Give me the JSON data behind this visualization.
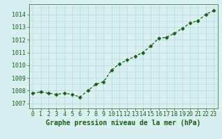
{
  "x": [
    0,
    1,
    2,
    3,
    4,
    5,
    6,
    7,
    8,
    9,
    10,
    11,
    12,
    13,
    14,
    15,
    16,
    17,
    18,
    19,
    20,
    21,
    22,
    23
  ],
  "y": [
    1007.8,
    1007.9,
    1007.8,
    1007.7,
    1007.8,
    1007.7,
    1007.5,
    1008.0,
    1008.5,
    1008.7,
    1009.6,
    1010.1,
    1010.4,
    1010.7,
    1011.0,
    1011.5,
    1012.1,
    1012.2,
    1012.5,
    1012.9,
    1013.3,
    1013.5,
    1014.0,
    1014.3
  ],
  "line_color": "#1a5c1a",
  "marker": "D",
  "marker_color": "#1a5c1a",
  "marker_size": 2.5,
  "line_width": 0.9,
  "bg_color": "#d8f0f0",
  "grid_color": "#b8d8d8",
  "xlabel": "Graphe pression niveau de la mer (hPa)",
  "xlabel_color": "#1a5c1a",
  "xlabel_fontsize": 7,
  "ylabel_ticks": [
    1007,
    1008,
    1009,
    1010,
    1011,
    1012,
    1013,
    1014
  ],
  "xtick_labels": [
    "0",
    "1",
    "2",
    "3",
    "4",
    "5",
    "6",
    "7",
    "8",
    "9",
    "10",
    "11",
    "12",
    "13",
    "14",
    "15",
    "16",
    "17",
    "18",
    "19",
    "20",
    "21",
    "22",
    "23"
  ],
  "ylim": [
    1006.6,
    1014.8
  ],
  "xlim": [
    -0.5,
    23.5
  ],
  "tick_color": "#1a5c1a",
  "tick_fontsize": 6,
  "axis_color": "#5a8a5a"
}
